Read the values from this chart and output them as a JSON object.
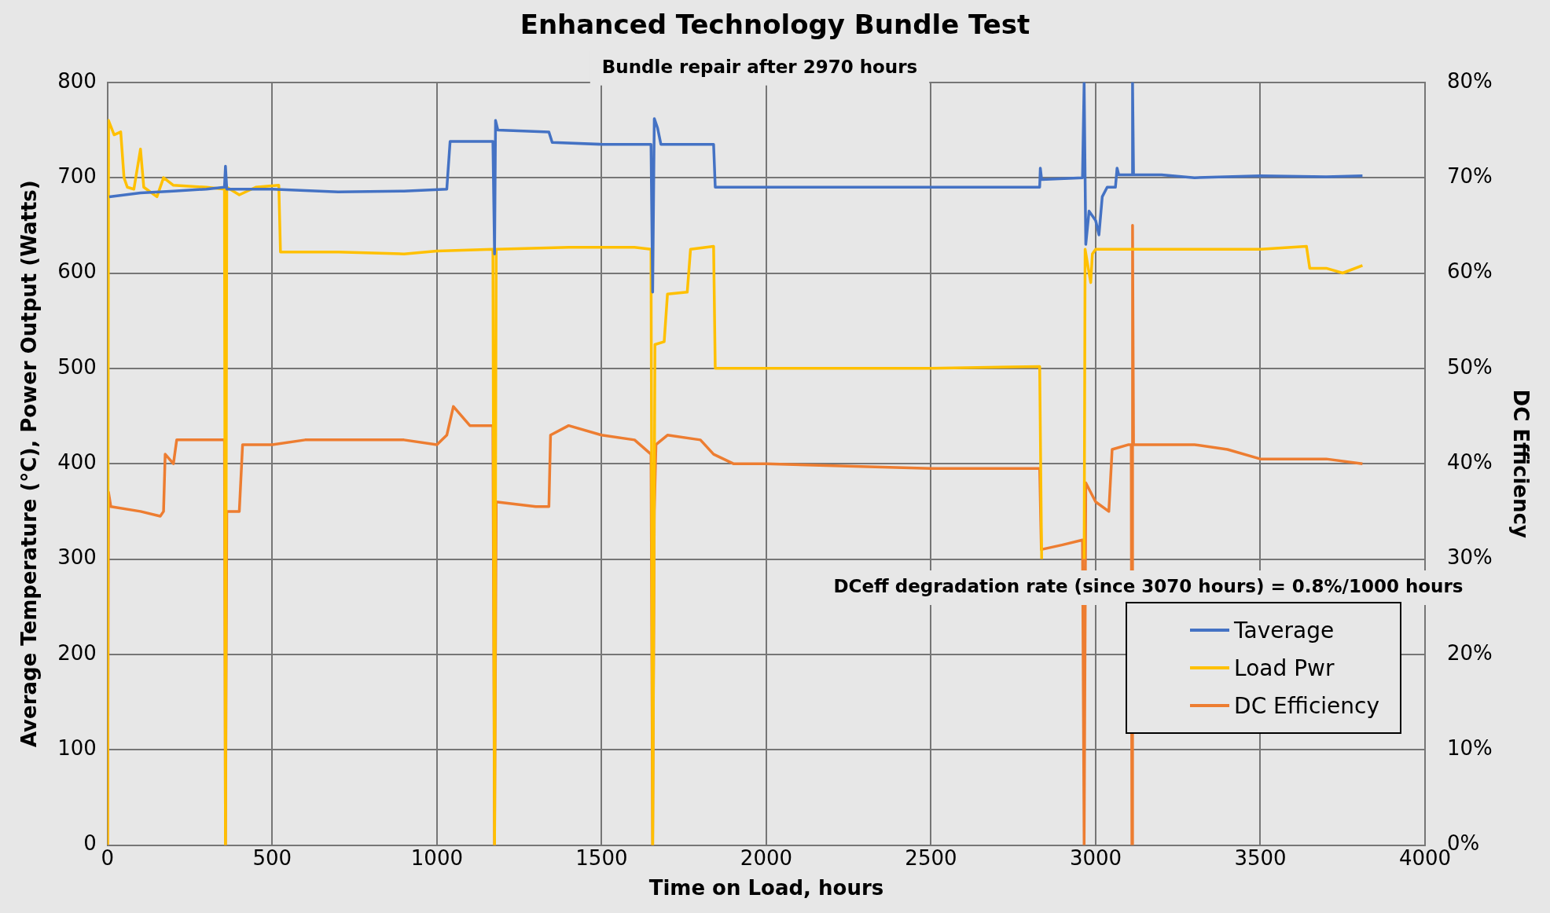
{
  "chart_data": {
    "type": "line",
    "title": "Enhanced Technology Bundle Test",
    "xlabel": "Time on Load, hours",
    "ylabel": "Average Temperature (°C), Power Output (Watts)",
    "y2label": "DC Efficiency",
    "annotations": [
      "Bundle repair after 2970 hours",
      "DCeff degradation rate (since 3070 hours) = 0.8%/1000 hours"
    ],
    "xlim": [
      0,
      4000
    ],
    "xticks": [
      0,
      500,
      1000,
      1500,
      2000,
      2500,
      3000,
      3500,
      4000
    ],
    "ylim": [
      0,
      800
    ],
    "yticks": [
      0,
      100,
      200,
      300,
      400,
      500,
      600,
      700,
      800
    ],
    "y2lim": [
      0,
      80
    ],
    "y2ticks": [
      {
        "value": 0,
        "label": "0%"
      },
      {
        "value": 10,
        "label": "10%"
      },
      {
        "value": 20,
        "label": "20%"
      },
      {
        "value": 30,
        "label": "30%"
      },
      {
        "value": 40,
        "label": "40%"
      },
      {
        "value": 50,
        "label": "50%"
      },
      {
        "value": 60,
        "label": "60%"
      },
      {
        "value": 70,
        "label": "70%"
      },
      {
        "value": 80,
        "label": "80%"
      }
    ],
    "grid": true,
    "legend": "bottom right",
    "marker": "none",
    "line_style": "solid",
    "series": [
      {
        "name": "Taverage",
        "color": "#4472c4",
        "x": [
          5,
          100,
          200,
          300,
          355,
          358,
          362,
          500,
          700,
          900,
          1030,
          1040,
          1170,
          1175,
          1178,
          1185,
          1340,
          1350,
          1500,
          1650,
          1655,
          1660,
          1670,
          1680,
          1840,
          1845,
          2000,
          2500,
          2830,
          2832,
          2836,
          2960,
          2965,
          2970,
          2980,
          3000,
          3010,
          3020,
          3035,
          3060,
          3065,
          3070,
          3110,
          3112,
          3115,
          3200,
          3300,
          3500,
          3700,
          3810
        ],
        "values": [
          680,
          684,
          686,
          688,
          690,
          712,
          688,
          688,
          685,
          686,
          688,
          738,
          738,
          620,
          760,
          750,
          748,
          737,
          735,
          735,
          580,
          762,
          752,
          735,
          735,
          690,
          690,
          690,
          690,
          710,
          698,
          700,
          800,
          630,
          665,
          655,
          640,
          680,
          690,
          690,
          710,
          703,
          703,
          800,
          703,
          703,
          700,
          702,
          701,
          702
        ]
      },
      {
        "name": "Load Pwr",
        "color": "#ffc000",
        "x": [
          0,
          3,
          20,
          40,
          50,
          60,
          80,
          100,
          110,
          150,
          170,
          200,
          300,
          355,
          358,
          362,
          400,
          450,
          520,
          525,
          700,
          900,
          1000,
          1170,
          1175,
          1180,
          1400,
          1600,
          1650,
          1655,
          1662,
          1690,
          1700,
          1760,
          1770,
          1840,
          1845,
          2000,
          2500,
          2830,
          2836,
          2838,
          2963,
          2965,
          2968,
          2980,
          2985,
          2990,
          3000,
          3100,
          3300,
          3500,
          3640,
          3650,
          3700,
          3750,
          3810
        ],
        "values": [
          0,
          760,
          745,
          748,
          700,
          690,
          688,
          730,
          690,
          680,
          700,
          692,
          690,
          688,
          0,
          690,
          682,
          690,
          692,
          622,
          622,
          620,
          623,
          625,
          0,
          625,
          627,
          627,
          625,
          0,
          525,
          528,
          578,
          580,
          625,
          628,
          500,
          500,
          500,
          502,
          300,
          null,
          null,
          300,
          625,
          600,
          590,
          620,
          625,
          625,
          625,
          625,
          628,
          605,
          605,
          600,
          608
        ]
      },
      {
        "name": "DC Efficiency",
        "color": "#ed7d31",
        "axis": "y2",
        "x": [
          0,
          3,
          10,
          100,
          160,
          170,
          175,
          200,
          210,
          300,
          355,
          358,
          362,
          400,
          410,
          500,
          600,
          700,
          800,
          900,
          1000,
          1030,
          1050,
          1100,
          1170,
          1175,
          1180,
          1300,
          1340,
          1345,
          1400,
          1500,
          1600,
          1650,
          1655,
          1660,
          1665,
          1700,
          1800,
          1840,
          1900,
          2000,
          2500,
          2830,
          2835,
          2900,
          2960,
          2965,
          2970,
          3000,
          3040,
          3050,
          3100,
          3108,
          3110,
          3112,
          3115,
          3200,
          3300,
          3400,
          3500,
          3600,
          3700,
          3810
        ],
        "values": [
          0,
          37,
          35.5,
          35,
          34.5,
          35,
          41,
          40,
          42.5,
          42.5,
          42.5,
          0,
          35,
          35,
          42,
          42,
          42.5,
          42.5,
          42.5,
          42.5,
          42,
          43,
          46,
          44,
          44,
          0,
          36,
          35.5,
          35.5,
          43,
          44,
          43,
          42.5,
          41,
          0,
          35,
          42,
          43,
          42.5,
          41,
          40,
          40,
          39.5,
          39.5,
          31,
          31.5,
          32,
          0,
          38,
          36,
          35,
          41.5,
          42,
          42,
          0,
          65,
          42,
          42,
          42,
          41.5,
          40.5,
          40.5,
          40.5,
          40
        ]
      }
    ]
  }
}
